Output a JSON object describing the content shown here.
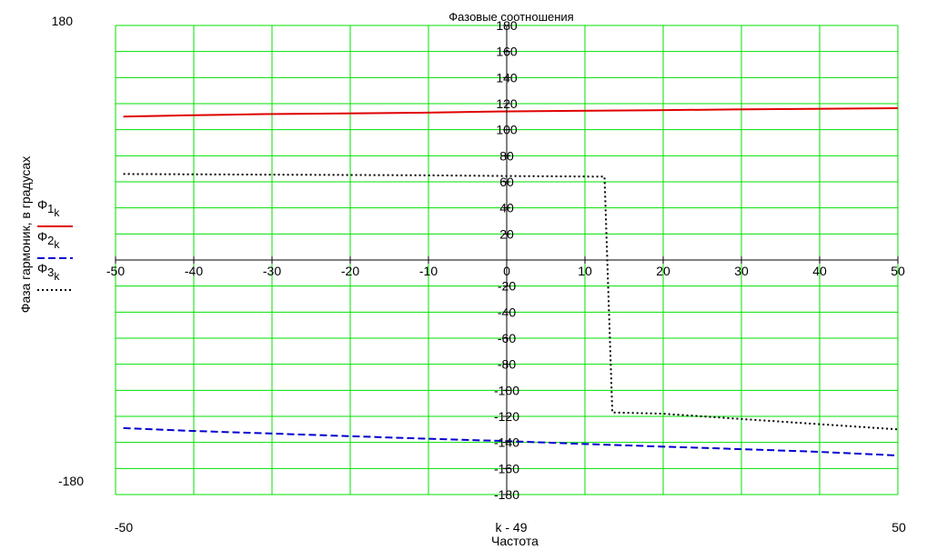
{
  "chart_data": {
    "type": "line",
    "title": "Фазовые соотношения",
    "xlabel": "Частота",
    "ylabel": "Фаза гармоник, в градусах",
    "x_expression": "k - 49",
    "xlim": [
      -50,
      50
    ],
    "ylim": [
      -180,
      180
    ],
    "y_range_labels": [
      "180",
      "-180"
    ],
    "x_range_labels": [
      "-50",
      "50"
    ],
    "x_ticks": [
      -50,
      -40,
      -30,
      -20,
      -10,
      0,
      10,
      20,
      30,
      40,
      50
    ],
    "y_ticks": [
      180,
      160,
      140,
      120,
      100,
      80,
      60,
      40,
      20,
      -20,
      -40,
      -60,
      -80,
      -100,
      -120,
      -140,
      -160,
      -180
    ],
    "grid": true,
    "grid_color": "#00e000",
    "legend_position": "left",
    "series": [
      {
        "name": "Φ1k",
        "base": "Φ",
        "sub": "1",
        "subsub": "k",
        "color": "#e00000",
        "dash": "solid",
        "x": [
          -49,
          -41,
          -31,
          -11,
          -1,
          9,
          19,
          29,
          39,
          50
        ],
        "y": [
          110,
          111,
          112,
          113,
          114,
          114.5,
          115,
          115.5,
          116,
          116.5
        ]
      },
      {
        "name": "Φ2k",
        "base": "Φ",
        "sub": "2",
        "subsub": "k",
        "color": "#0000d0",
        "dash": "dashed",
        "x": [
          -49,
          -41,
          -31,
          -21,
          -11,
          0,
          9,
          19,
          29,
          39,
          50
        ],
        "y": [
          -129,
          -131,
          -133,
          -135,
          -137,
          -139,
          -141,
          -143,
          -145,
          -147,
          -150
        ]
      },
      {
        "name": "Φ3k",
        "base": "Φ",
        "sub": "3",
        "subsub": "k",
        "color": "#000000",
        "dash": "dotted",
        "x": [
          -49,
          -31,
          -11,
          0,
          12.5,
          13.5,
          20,
          30,
          40,
          50
        ],
        "y": [
          66,
          65.5,
          65,
          64.5,
          64,
          -117,
          -118,
          -122,
          -126,
          -130
        ]
      }
    ]
  }
}
